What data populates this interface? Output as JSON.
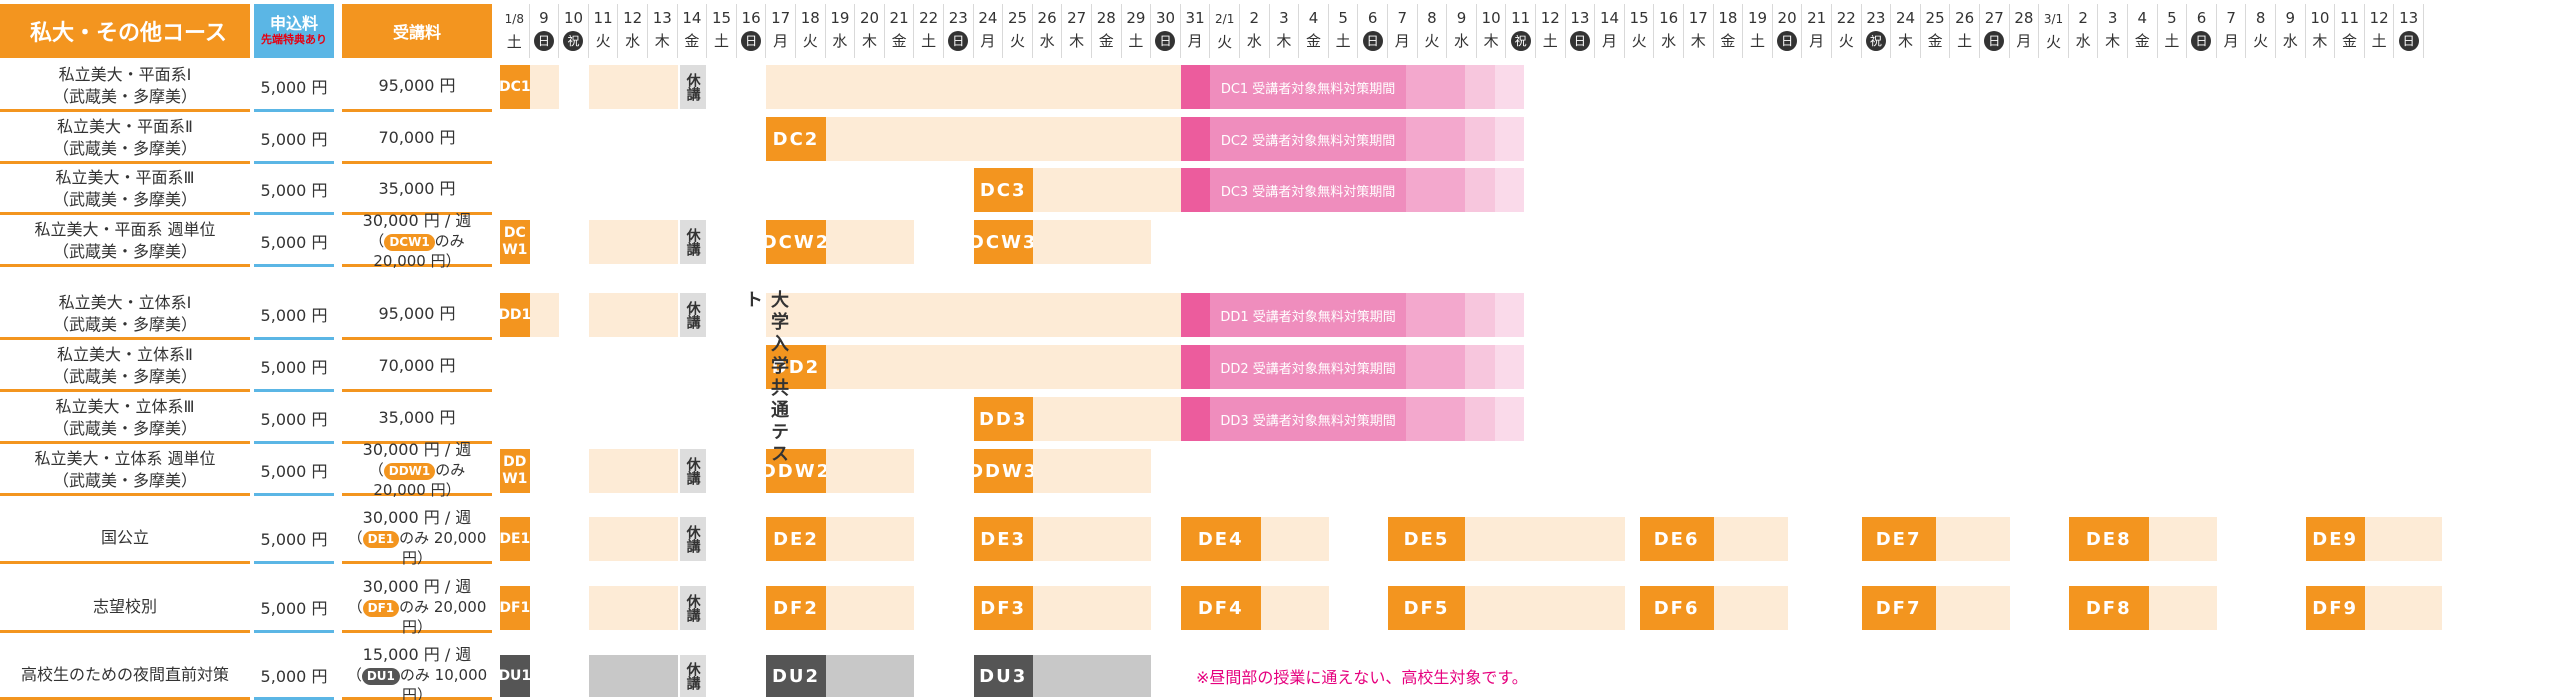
{
  "header": {
    "course": "私大・その他コース",
    "fee_title": "申込料",
    "fee_sub": "先端特典あり",
    "tuition": "受講料"
  },
  "days": [
    {
      "d": "1/8",
      "w": "土"
    },
    {
      "d": "9",
      "w": "日",
      "c": true
    },
    {
      "d": "10",
      "w": "祝",
      "c": true
    },
    {
      "d": "11",
      "w": "火"
    },
    {
      "d": "12",
      "w": "水"
    },
    {
      "d": "13",
      "w": "木"
    },
    {
      "d": "14",
      "w": "金"
    },
    {
      "d": "15",
      "w": "土"
    },
    {
      "d": "16",
      "w": "日",
      "c": true
    },
    {
      "d": "17",
      "w": "月"
    },
    {
      "d": "18",
      "w": "火"
    },
    {
      "d": "19",
      "w": "水"
    },
    {
      "d": "20",
      "w": "木"
    },
    {
      "d": "21",
      "w": "金"
    },
    {
      "d": "22",
      "w": "土"
    },
    {
      "d": "23",
      "w": "日",
      "c": true
    },
    {
      "d": "24",
      "w": "月"
    },
    {
      "d": "25",
      "w": "火"
    },
    {
      "d": "26",
      "w": "水"
    },
    {
      "d": "27",
      "w": "木"
    },
    {
      "d": "28",
      "w": "金"
    },
    {
      "d": "29",
      "w": "土"
    },
    {
      "d": "30",
      "w": "日",
      "c": true
    },
    {
      "d": "31",
      "w": "月"
    },
    {
      "d": "2/1",
      "w": "火"
    },
    {
      "d": "2",
      "w": "水"
    },
    {
      "d": "3",
      "w": "木"
    },
    {
      "d": "4",
      "w": "金"
    },
    {
      "d": "5",
      "w": "土"
    },
    {
      "d": "6",
      "w": "日",
      "c": true
    },
    {
      "d": "7",
      "w": "月"
    },
    {
      "d": "8",
      "w": "火"
    },
    {
      "d": "9",
      "w": "水"
    },
    {
      "d": "10",
      "w": "木"
    },
    {
      "d": "11",
      "w": "祝",
      "c": true
    },
    {
      "d": "12",
      "w": "土"
    },
    {
      "d": "13",
      "w": "日",
      "c": true
    },
    {
      "d": "14",
      "w": "月"
    },
    {
      "d": "15",
      "w": "火"
    },
    {
      "d": "16",
      "w": "水"
    },
    {
      "d": "17",
      "w": "木"
    },
    {
      "d": "18",
      "w": "金"
    },
    {
      "d": "19",
      "w": "土"
    },
    {
      "d": "20",
      "w": "日",
      "c": true
    },
    {
      "d": "21",
      "w": "月"
    },
    {
      "d": "22",
      "w": "火"
    },
    {
      "d": "23",
      "w": "祝",
      "c": true
    },
    {
      "d": "24",
      "w": "木"
    },
    {
      "d": "25",
      "w": "金"
    },
    {
      "d": "26",
      "w": "土"
    },
    {
      "d": "27",
      "w": "日",
      "c": true
    },
    {
      "d": "28",
      "w": "月"
    },
    {
      "d": "3/1",
      "w": "火"
    },
    {
      "d": "2",
      "w": "水"
    },
    {
      "d": "3",
      "w": "木"
    },
    {
      "d": "4",
      "w": "金"
    },
    {
      "d": "5",
      "w": "土"
    },
    {
      "d": "6",
      "w": "日",
      "c": true
    },
    {
      "d": "7",
      "w": "月"
    },
    {
      "d": "8",
      "w": "火"
    },
    {
      "d": "9",
      "w": "水"
    },
    {
      "d": "10",
      "w": "木"
    },
    {
      "d": "11",
      "w": "金"
    },
    {
      "d": "12",
      "w": "土"
    },
    {
      "d": "13",
      "w": "日",
      "c": true
    }
  ],
  "rows": [
    {
      "l1": "私立美大・平面系Ⅰ",
      "l2": "（武蔵美・多摩美）",
      "fee": "5,000 円",
      "tui": "95,000 円"
    },
    {
      "l1": "私立美大・平面系Ⅱ",
      "l2": "（武蔵美・多摩美）",
      "fee": "5,000 円",
      "tui": "70,000 円"
    },
    {
      "l1": "私立美大・平面系Ⅲ",
      "l2": "（武蔵美・多摩美）",
      "fee": "5,000 円",
      "tui": "35,000 円"
    },
    {
      "l1": "私立美大・平面系 週単位",
      "l2": "（武蔵美・多摩美）",
      "fee": "5,000 円",
      "tui": "30,000 円 / 週",
      "tag": "DCW1",
      "rest": "のみ 20,000 円）",
      "tagc": "#f3951f"
    },
    {
      "l1": "私立美大・立体系Ⅰ",
      "l2": "（武蔵美・多摩美）",
      "fee": "5,000 円",
      "tui": "95,000 円"
    },
    {
      "l1": "私立美大・立体系Ⅱ",
      "l2": "（武蔵美・多摩美）",
      "fee": "5,000 円",
      "tui": "70,000 円"
    },
    {
      "l1": "私立美大・立体系Ⅲ",
      "l2": "（武蔵美・多摩美）",
      "fee": "5,000 円",
      "tui": "35,000 円"
    },
    {
      "l1": "私立美大・立体系 週単位",
      "l2": "（武蔵美・多摩美）",
      "fee": "5,000 円",
      "tui": "30,000 円 / 週",
      "tag": "DDW1",
      "rest": "のみ 20,000 円）",
      "tagc": "#f3951f"
    },
    {
      "l1": "国公立",
      "l2": "",
      "fee": "5,000 円",
      "tui": "30,000 円 / 週",
      "tag": "DE1",
      "rest": "のみ 20,000 円）",
      "tagc": "#f3951f"
    },
    {
      "l1": "志望校別",
      "l2": "",
      "fee": "5,000 円",
      "tui": "30,000 円 / 週",
      "tag": "DF1",
      "rest": "のみ 20,000 円）",
      "tagc": "#f3951f"
    },
    {
      "l1": "高校生のための夜間直前対策",
      "l2": "",
      "fee": "5,000 円",
      "tui": "15,000 円 / 週",
      "tag": "DU1",
      "rest": "のみ 10,000 円）",
      "tagc": "#555"
    }
  ],
  "labels": {
    "kyu": "休講",
    "exam": "大学入学共通テスト",
    "note": "※昼間部の授業に通えない、高校生対象です。",
    "DC1": "DC1",
    "DC2": "DC2",
    "DC3": "DC3",
    "DCW1": "DC W1",
    "DCW2": "DCW2",
    "DCW3": "DCW3",
    "DD1": "DD1",
    "DD2": "DD2",
    "DD3": "DD3",
    "DDW1": "DD W1",
    "DDW2": "DDW2",
    "DDW3": "DDW3",
    "DE1": "DE1",
    "DE2": "DE2",
    "DE3": "DE3",
    "DE4": "DE4",
    "DE5": "DE5",
    "DE6": "DE6",
    "DE7": "DE7",
    "DE8": "DE8",
    "DE9": "DE9",
    "DF1": "DF1",
    "DF2": "DF2",
    "DF3": "DF3",
    "DF4": "DF4",
    "DF5": "DF5",
    "DF6": "DF6",
    "DF7": "DF7",
    "DF8": "DF8",
    "DF9": "DF9",
    "DU1": "DU1",
    "DU2": "DU2",
    "DU3": "DU3",
    "pDC1": "DC1 受講者対象無料対策期間",
    "pDC2": "DC2 受講者対象無料対策期間",
    "pDC3": "DC3 受講者対象無料対策期間",
    "pDD1": "DD1 受講者対象無料対策期間",
    "pDD2": "DD2 受講者対象無料対策期間",
    "pDD3": "DD3 受講者対象無料対策期間"
  },
  "colors": {
    "orange": "#f3951f",
    "light": "#fdebd6",
    "blue": "#5bb6e5",
    "pink": "#ef8dbd",
    "gray": "#c8c8c8"
  }
}
